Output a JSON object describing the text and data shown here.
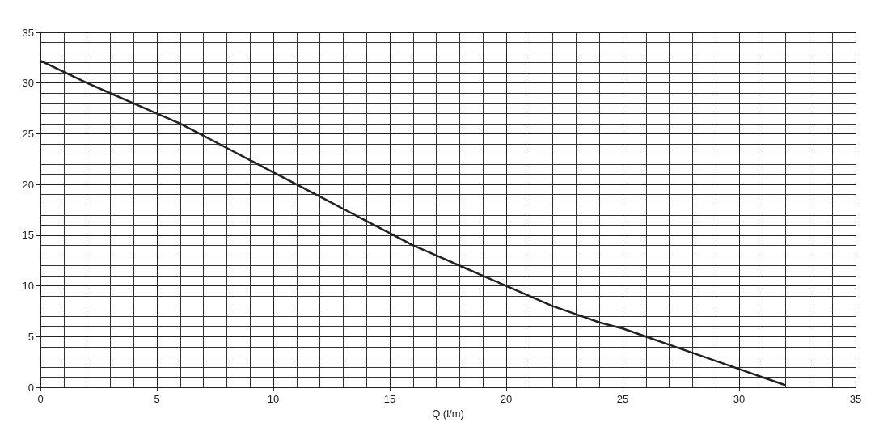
{
  "chart_data": {
    "type": "line",
    "xlabel": "Q (l/m)",
    "x": [
      0,
      1,
      2,
      3,
      4,
      5,
      6,
      7,
      8,
      9,
      10,
      11,
      12,
      13,
      14,
      15,
      16,
      17,
      18,
      19,
      20,
      21,
      22,
      23,
      24,
      25,
      26,
      27,
      28,
      29,
      30,
      31,
      32
    ],
    "series": [
      {
        "color": "#222222",
        "values": [
          32.2,
          31.1,
          30,
          29,
          28,
          27,
          26,
          24.8,
          23.6,
          22.4,
          21.2,
          20,
          18.8,
          17.6,
          16.4,
          15.2,
          14,
          13,
          12,
          11,
          10,
          9,
          8,
          7.2,
          6.4,
          5.8,
          5,
          4.2,
          3.4,
          2.6,
          1.8,
          1,
          0.2
        ]
      }
    ],
    "xlim": [
      0,
      35
    ],
    "xticks": [
      0,
      5,
      10,
      15,
      20,
      25,
      30,
      35
    ],
    "ylim": [
      0,
      35
    ],
    "yticks": [
      0,
      5,
      10,
      15,
      20,
      25,
      30,
      35
    ],
    "grid": true,
    "marker": "none",
    "line_style": "solid"
  }
}
